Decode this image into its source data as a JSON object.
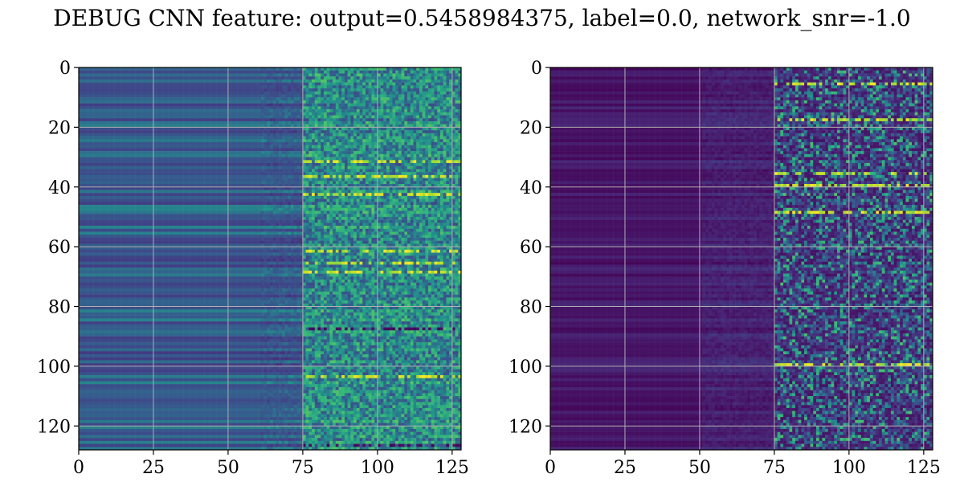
{
  "title": "DEBUG CNN feature: output=0.5458984375, label=0.0, network_snr=-1.0",
  "chart_data": [
    {
      "type": "heatmap",
      "colormap": "viridis",
      "grid": true,
      "xlim": [
        0,
        128
      ],
      "ylim": [
        128,
        0
      ],
      "xticks": [
        0,
        25,
        50,
        75,
        100,
        125
      ],
      "yticks": [
        0,
        20,
        40,
        60,
        80,
        100,
        120
      ],
      "xtick_labels": [
        "0",
        "25",
        "50",
        "75",
        "100",
        "125"
      ],
      "ytick_labels": [
        "0",
        "20",
        "40",
        "60",
        "80",
        "100",
        "120"
      ],
      "rows": 128,
      "cols": 128,
      "value_range": [
        0,
        1
      ],
      "smooth_region_cols": [
        0,
        74
      ],
      "noisy_region_cols": [
        75,
        127
      ],
      "smooth_level_mean": 0.32,
      "noisy_level_mean": 0.42,
      "bright_rows": [
        31,
        36,
        42,
        61,
        65,
        68,
        103
      ],
      "dark_rows": [
        87,
        126
      ]
    },
    {
      "type": "heatmap",
      "colormap": "viridis",
      "grid": true,
      "xlim": [
        0,
        128
      ],
      "ylim": [
        128,
        0
      ],
      "xticks": [
        0,
        25,
        50,
        75,
        100,
        125
      ],
      "yticks": [
        0,
        20,
        40,
        60,
        80,
        100,
        120
      ],
      "xtick_labels": [
        "0",
        "25",
        "50",
        "75",
        "100",
        "125"
      ],
      "ytick_labels": [
        "0",
        "20",
        "40",
        "60",
        "80",
        "100",
        "120"
      ],
      "rows": 128,
      "cols": 128,
      "value_range": [
        0,
        1
      ],
      "smooth_region_cols": [
        0,
        74
      ],
      "noisy_region_cols": [
        75,
        127
      ],
      "smooth_level_mean": 0.06,
      "noisy_level_mean": 0.2,
      "bright_rows": [
        5,
        17,
        35,
        39,
        48,
        99
      ],
      "dark_rows": []
    }
  ]
}
